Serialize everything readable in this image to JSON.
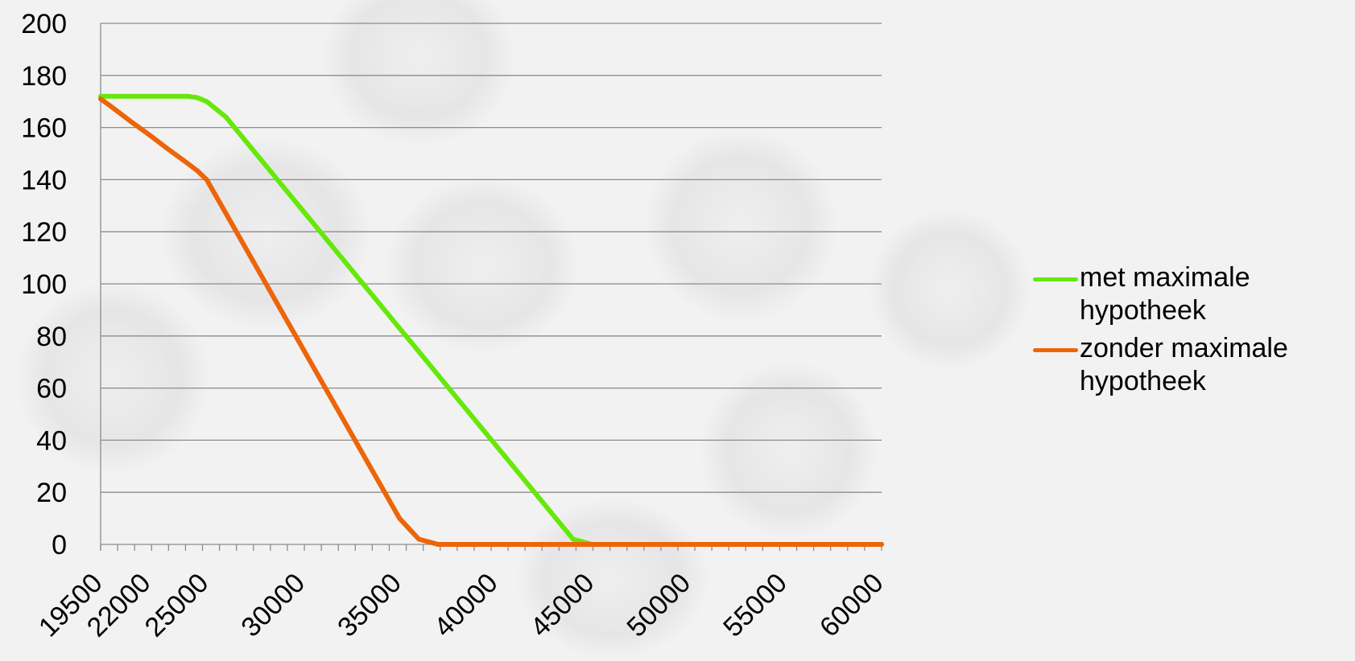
{
  "chart_data": {
    "type": "line",
    "title": "",
    "xlabel": "",
    "ylabel": "",
    "ylim": [
      0,
      200
    ],
    "y_ticks": [
      "0",
      "20",
      "40",
      "60",
      "80",
      "100",
      "120",
      "140",
      "160",
      "180",
      "200"
    ],
    "x_tick_labels": [
      "19500",
      "22000",
      "25000",
      "30000",
      "35000",
      "40000",
      "45000",
      "50000",
      "55000",
      "60000"
    ],
    "grid": true,
    "legend_position": "right",
    "x": [
      19500,
      20000,
      20500,
      21000,
      21500,
      22000,
      22500,
      23000,
      23500,
      24000,
      24500,
      25000,
      26000,
      27000,
      28000,
      29000,
      30000,
      31000,
      32000,
      33000,
      34000,
      35000,
      36000,
      37000,
      38000,
      39000,
      40000,
      41000,
      42000,
      43000,
      44000,
      45000,
      46000,
      47000,
      48000,
      49000,
      50000,
      51000,
      52000,
      53000,
      54000,
      55000,
      56000,
      57000,
      58000,
      59000,
      60000
    ],
    "series": [
      {
        "name": "met maximale hypotheek",
        "color": "#66e80a",
        "values": [
          172,
          172,
          172,
          172,
          172,
          172,
          172,
          172,
          172,
          172,
          171.5,
          170,
          164,
          155,
          146,
          137,
          128,
          119,
          110,
          101,
          92,
          83,
          74,
          65,
          56,
          47,
          38,
          29,
          20,
          11,
          2,
          0,
          0,
          0,
          0,
          0,
          0,
          0,
          0,
          0,
          0,
          0,
          0,
          0,
          0,
          0,
          0
        ]
      },
      {
        "name": "zonder maximale hypotheek",
        "color": "#ec6509",
        "values": [
          171,
          168.3,
          165.5,
          162.7,
          160,
          157.3,
          154.5,
          151.7,
          149,
          146.3,
          143.5,
          140,
          127,
          114,
          101,
          88,
          75,
          62,
          49,
          36,
          23,
          10,
          2,
          0,
          0,
          0,
          0,
          0,
          0,
          0,
          0,
          0,
          0,
          0,
          0,
          0,
          0,
          0,
          0,
          0,
          0,
          0,
          0,
          0,
          0,
          0,
          0
        ]
      }
    ]
  }
}
